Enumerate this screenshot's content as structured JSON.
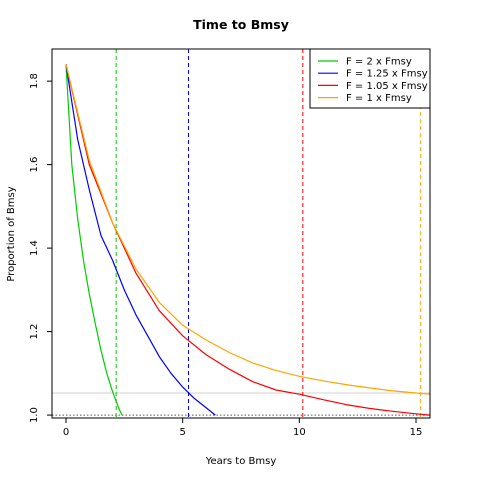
{
  "chart_data": {
    "type": "line",
    "title": "Time to Bmsy",
    "xlabel": "Years to Bmsy",
    "ylabel": "Proportion of Bmsy",
    "xlim": [
      -0.6,
      15.6
    ],
    "ylim": [
      0.993,
      1.877
    ],
    "x_ticks": [
      0,
      5,
      10,
      15
    ],
    "y_ticks": [
      1.0,
      1.2,
      1.4,
      1.6,
      1.8
    ],
    "legend_position": "top-right",
    "grid": false,
    "start_value": 1.84,
    "series": [
      {
        "name": "F = 2 x Fmsy",
        "color": "#00cc00",
        "points": [
          [
            0,
            1.84
          ],
          [
            0.25,
            1.6
          ],
          [
            0.5,
            1.47
          ],
          [
            0.75,
            1.37
          ],
          [
            1.0,
            1.29
          ],
          [
            1.25,
            1.22
          ],
          [
            1.5,
            1.155
          ],
          [
            1.75,
            1.1
          ],
          [
            2.0,
            1.055
          ],
          [
            2.25,
            1.018
          ],
          [
            2.4,
            1.0
          ]
        ],
        "years_to_bmsy": 2.15
      },
      {
        "name": "F = 1.25 x Fmsy",
        "color": "#0000ff",
        "points": [
          [
            0,
            1.84
          ],
          [
            0.5,
            1.66
          ],
          [
            1.0,
            1.54
          ],
          [
            1.5,
            1.43
          ],
          [
            2.0,
            1.37
          ],
          [
            2.5,
            1.3
          ],
          [
            3.0,
            1.24
          ],
          [
            3.5,
            1.19
          ],
          [
            4.0,
            1.14
          ],
          [
            4.5,
            1.1
          ],
          [
            5.0,
            1.067
          ],
          [
            5.5,
            1.04
          ],
          [
            6.0,
            1.018
          ],
          [
            6.4,
            1.0
          ]
        ],
        "years_to_bmsy": 5.25
      },
      {
        "name": "F = 1.05 x Fmsy",
        "color": "#ff0000",
        "points": [
          [
            0,
            1.84
          ],
          [
            1,
            1.6
          ],
          [
            2,
            1.46
          ],
          [
            3,
            1.34
          ],
          [
            4,
            1.25
          ],
          [
            5,
            1.19
          ],
          [
            6,
            1.145
          ],
          [
            7,
            1.11
          ],
          [
            8,
            1.08
          ],
          [
            9,
            1.06
          ],
          [
            10,
            1.05
          ],
          [
            11,
            1.037
          ],
          [
            12,
            1.025
          ],
          [
            13,
            1.016
          ],
          [
            14,
            1.009
          ],
          [
            15,
            1.003
          ],
          [
            15.6,
            1.0
          ]
        ],
        "years_to_bmsy": 10.15
      },
      {
        "name": "F = 1 x Fmsy",
        "color": "#ffa500",
        "points": [
          [
            0,
            1.84
          ],
          [
            1,
            1.61
          ],
          [
            2,
            1.46
          ],
          [
            3,
            1.35
          ],
          [
            4,
            1.27
          ],
          [
            5,
            1.215
          ],
          [
            6,
            1.18
          ],
          [
            7,
            1.15
          ],
          [
            8,
            1.125
          ],
          [
            9,
            1.107
          ],
          [
            10,
            1.093
          ],
          [
            11,
            1.082
          ],
          [
            12,
            1.073
          ],
          [
            13,
            1.065
          ],
          [
            14,
            1.058
          ],
          [
            15,
            1.053
          ],
          [
            15.6,
            1.05
          ]
        ],
        "years_to_bmsy": 15.2
      }
    ],
    "reference_lines": {
      "bmsy": 1.0,
      "upper": 1.053
    }
  }
}
